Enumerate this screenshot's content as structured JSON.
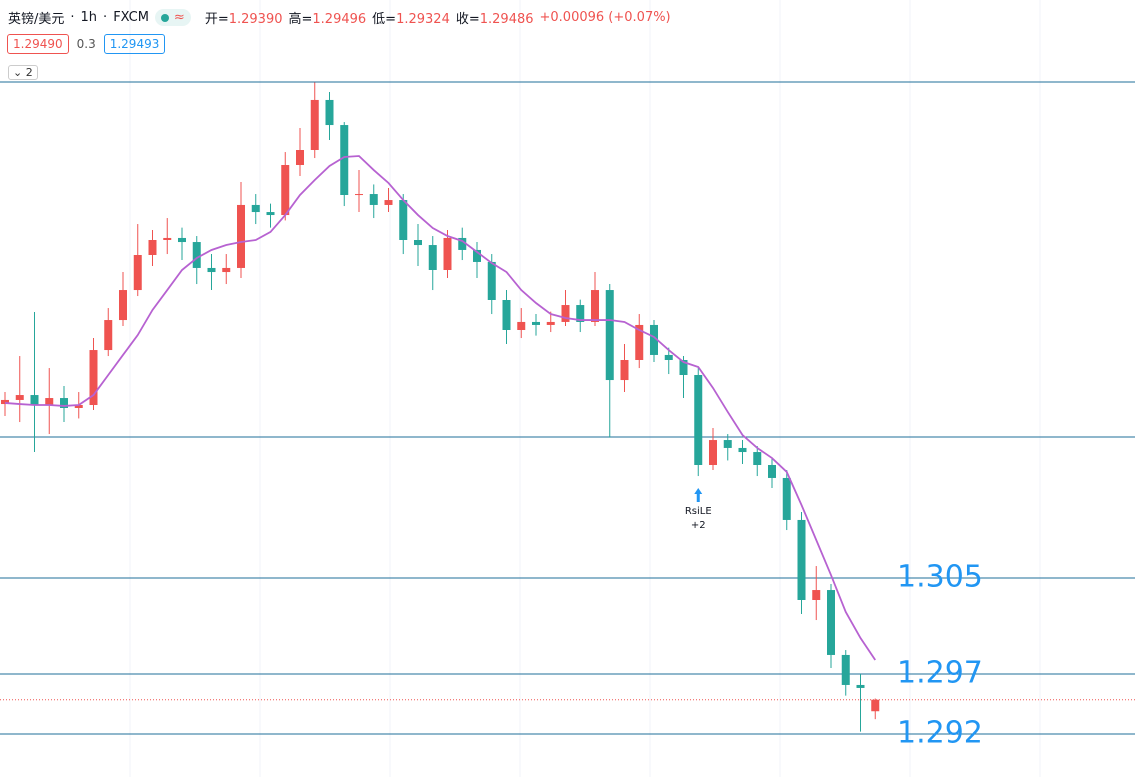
{
  "header": {
    "symbol": "英镑/美元",
    "interval": "1h",
    "exchange": "FXCM",
    "badge": "≈",
    "ohlc": [
      {
        "label": "开=",
        "value": "1.29390"
      },
      {
        "label": "高=",
        "value": "1.29496"
      },
      {
        "label": "低=",
        "value": "1.29324"
      },
      {
        "label": "收=",
        "value": "1.29486"
      }
    ],
    "change": "+0.00096 (+0.07%)",
    "bid": "1.29490",
    "spread": "0.3",
    "ask": "1.29493",
    "collapse": "2"
  },
  "chart_data": {
    "type": "candlestick",
    "up_color": "#ef5350",
    "down_color": "#26a69a",
    "ylim": [
      1.28842,
      1.35317
    ],
    "open": [
      1.3195,
      1.31984,
      1.32025,
      1.31942,
      1.32,
      1.31917,
      1.31942,
      1.324,
      1.3265,
      1.329,
      1.33192,
      1.33317,
      1.33334,
      1.333,
      1.33084,
      1.3305,
      1.33084,
      1.33609,
      1.3355,
      1.33525,
      1.33942,
      1.34067,
      1.34484,
      1.34275,
      1.33692,
      1.337,
      1.33609,
      1.3365,
      1.33317,
      1.33275,
      1.33067,
      1.33334,
      1.33234,
      1.33134,
      1.32817,
      1.32567,
      1.32634,
      1.32609,
      1.32634,
      1.32775,
      1.32634,
      1.329,
      1.3215,
      1.32317,
      1.32609,
      1.32359,
      1.32317,
      1.32192,
      1.31442,
      1.3165,
      1.31584,
      1.3155,
      1.31442,
      1.31334,
      1.30984,
      1.30317,
      1.304,
      1.29859,
      1.29609,
      1.2939
    ],
    "high": [
      1.3205,
      1.3235,
      1.32717,
      1.3225,
      1.321,
      1.3205,
      1.325,
      1.3275,
      1.3305,
      1.3345,
      1.334,
      1.335,
      1.3342,
      1.3335,
      1.332,
      1.332,
      1.338,
      1.337,
      1.3362,
      1.3405,
      1.3425,
      1.3463,
      1.3455,
      1.343,
      1.339,
      1.3378,
      1.3375,
      1.337,
      1.3345,
      1.3335,
      1.334,
      1.3342,
      1.333,
      1.332,
      1.329,
      1.3275,
      1.327,
      1.3272,
      1.329,
      1.3282,
      1.3305,
      1.3295,
      1.3245,
      1.327,
      1.3265,
      1.3242,
      1.3235,
      1.3225,
      1.3175,
      1.317,
      1.3165,
      1.316,
      1.315,
      1.314,
      1.3105,
      1.306,
      1.3045,
      1.299,
      1.297,
      1.29496
    ],
    "low": [
      1.3185,
      1.318,
      1.3155,
      1.317,
      1.318,
      1.3183,
      1.319,
      1.3235,
      1.326,
      1.3285,
      1.331,
      1.332,
      1.3315,
      1.3295,
      1.329,
      1.3295,
      1.33,
      1.3345,
      1.3342,
      1.3348,
      1.3385,
      1.34,
      1.3415,
      1.336,
      1.3355,
      1.335,
      1.3355,
      1.332,
      1.331,
      1.329,
      1.33,
      1.3315,
      1.33,
      1.327,
      1.3245,
      1.325,
      1.3252,
      1.3255,
      1.326,
      1.3255,
      1.326,
      1.3167,
      1.3205,
      1.3225,
      1.323,
      1.322,
      1.32,
      1.3135,
      1.314,
      1.3148,
      1.3145,
      1.3135,
      1.3125,
      1.309,
      1.302,
      1.3015,
      1.2975,
      1.2952,
      1.2922,
      1.29324
    ],
    "close": [
      1.31984,
      1.32025,
      1.31942,
      1.32,
      1.31917,
      1.31942,
      1.324,
      1.3265,
      1.329,
      1.33192,
      1.33317,
      1.33334,
      1.333,
      1.33084,
      1.3305,
      1.33084,
      1.33609,
      1.3355,
      1.33525,
      1.33942,
      1.34067,
      1.34484,
      1.34275,
      1.33692,
      1.337,
      1.33609,
      1.3365,
      1.33317,
      1.33275,
      1.33067,
      1.33334,
      1.33234,
      1.33134,
      1.32817,
      1.32567,
      1.32634,
      1.32609,
      1.32634,
      1.32775,
      1.32634,
      1.329,
      1.3215,
      1.32317,
      1.32609,
      1.32359,
      1.32317,
      1.32192,
      1.31442,
      1.3165,
      1.31584,
      1.3155,
      1.31442,
      1.31334,
      1.30984,
      1.30317,
      1.304,
      1.29859,
      1.29609,
      1.29584,
      1.29486
    ],
    "ma": {
      "color": "#b762d1",
      "values": [
        1.31959,
        1.3195,
        1.31942,
        1.31942,
        1.31934,
        1.31942,
        1.32025,
        1.32192,
        1.32359,
        1.32525,
        1.32734,
        1.329,
        1.33067,
        1.33167,
        1.33234,
        1.33275,
        1.333,
        1.33317,
        1.33384,
        1.33525,
        1.33692,
        1.33817,
        1.33934,
        1.34009,
        1.34017,
        1.339,
        1.33792,
        1.3365,
        1.33525,
        1.33417,
        1.3335,
        1.33309,
        1.33217,
        1.33125,
        1.3305,
        1.329,
        1.32792,
        1.327,
        1.32667,
        1.3265,
        1.3265,
        1.3265,
        1.32634,
        1.32567,
        1.32509,
        1.324,
        1.323,
        1.32259,
        1.32084,
        1.31884,
        1.31692,
        1.31584,
        1.315,
        1.31384,
        1.31109,
        1.30817,
        1.30525,
        1.30217,
        1.3,
        1.29817
      ]
    },
    "hlines": [
      1.34634,
      1.31675
    ],
    "levels": [
      1.305,
      1.297,
      1.292
    ],
    "level_color": "#2196f3",
    "signal": {
      "index": 47,
      "label": "RsiLE",
      "qty": "+2"
    }
  }
}
